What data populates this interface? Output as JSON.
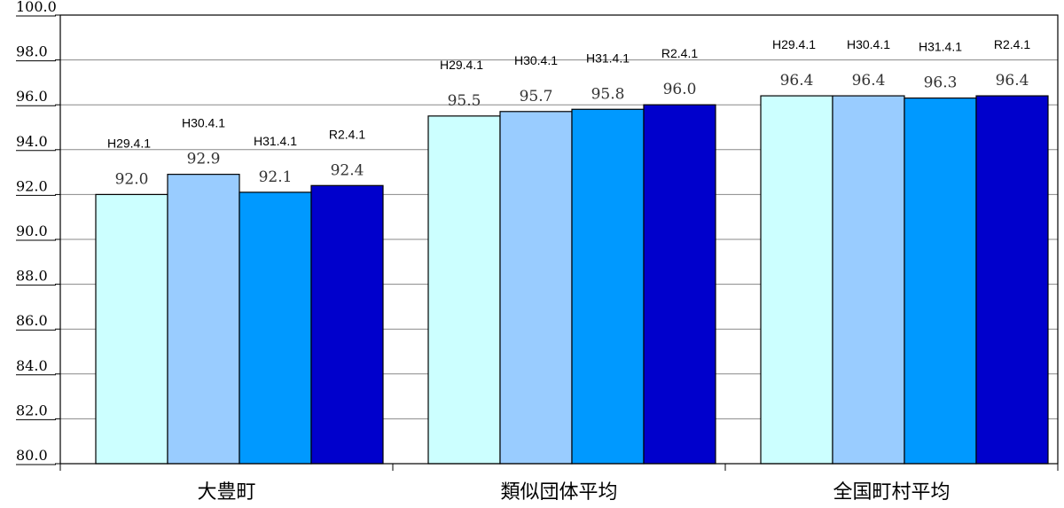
{
  "chart_data": {
    "type": "bar",
    "categories": [
      "大豊町",
      "類似団体平均",
      "全国町村平均"
    ],
    "series": [
      {
        "name": "H29.4.1",
        "color": "#ccffff",
        "values": [
          92.0,
          95.5,
          96.4
        ]
      },
      {
        "name": "H30.4.1",
        "color": "#99ccff",
        "values": [
          92.9,
          95.7,
          96.4
        ]
      },
      {
        "name": "H31.4.1",
        "color": "#0099ff",
        "values": [
          92.1,
          95.8,
          96.3
        ]
      },
      {
        "name": "R2.4.1",
        "color": "#0000cc",
        "values": [
          92.4,
          96.0,
          96.4
        ]
      }
    ],
    "ylim": [
      80.0,
      100.0
    ],
    "yticks": [
      "80.0",
      "82.0",
      "84.0",
      "86.0",
      "88.0",
      "90.0",
      "92.0",
      "94.0",
      "96.0",
      "98.0",
      "100.0"
    ],
    "grid": true,
    "legend": "labels above bars"
  }
}
